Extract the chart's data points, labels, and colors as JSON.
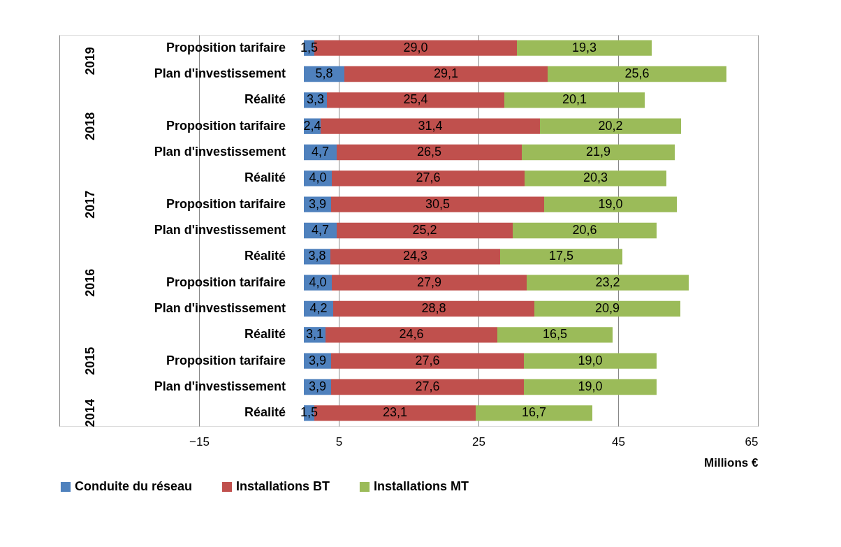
{
  "chart_data": {
    "type": "bar",
    "orientation": "horizontal",
    "stacked": true,
    "xlabel": "Millions €",
    "categories": [
      "Proposition tarifaire",
      "Plan d'investissement",
      "Réalité",
      "Proposition tarifaire",
      "Plan d'investissement",
      "Réalité",
      "Proposition tarifaire",
      "Plan d'investissement",
      "Réalité",
      "Proposition tarifaire",
      "Plan d'investissement",
      "Réalité",
      "Proposition tarifaire",
      "Plan d'investissement",
      "Réalité"
    ],
    "series": [
      {
        "name": "Conduite du réseau",
        "color": "#4f81bd",
        "values": [
          1.5,
          5.8,
          3.3,
          2.4,
          4.7,
          4.0,
          3.9,
          4.7,
          3.8,
          4.0,
          4.2,
          3.1,
          3.9,
          3.9,
          1.5
        ],
        "value_labels": [
          "1,5",
          "5,8",
          "3,3",
          "2,4",
          "4,7",
          "4,0",
          "3,9",
          "4,7",
          "3,8",
          "4,0",
          "4,2",
          "3,1",
          "3,9",
          "3,9",
          "1,5"
        ]
      },
      {
        "name": "Installations BT",
        "color": "#c0504d",
        "values": [
          29.0,
          29.1,
          25.4,
          31.4,
          26.5,
          27.6,
          30.5,
          25.2,
          24.3,
          27.9,
          28.8,
          24.6,
          27.6,
          27.6,
          23.1
        ],
        "value_labels": [
          "29,0",
          "29,1",
          "25,4",
          "31,4",
          "26,5",
          "27,6",
          "30,5",
          "25,2",
          "24,3",
          "27,9",
          "28,8",
          "24,6",
          "27,6",
          "27,6",
          "23,1"
        ]
      },
      {
        "name": "Installations MT",
        "color": "#9bbb59",
        "values": [
          19.3,
          25.6,
          20.1,
          20.2,
          21.9,
          20.3,
          19.0,
          20.6,
          17.5,
          23.2,
          20.9,
          16.5,
          19.0,
          19.0,
          16.7
        ],
        "value_labels": [
          "19,3",
          "25,6",
          "20,1",
          "20,2",
          "21,9",
          "20,3",
          "19,0",
          "20,6",
          "17,5",
          "23,2",
          "20,9",
          "16,5",
          "19,0",
          "19,0",
          "16,7"
        ]
      }
    ],
    "annotations": [
      "2019",
      "2018",
      "2017",
      "2016",
      "2015",
      "2014"
    ],
    "xlim": [
      -35,
      65
    ],
    "xticks": [
      -15,
      5,
      25,
      45,
      65
    ],
    "grid": "x",
    "legend": "bottom"
  }
}
